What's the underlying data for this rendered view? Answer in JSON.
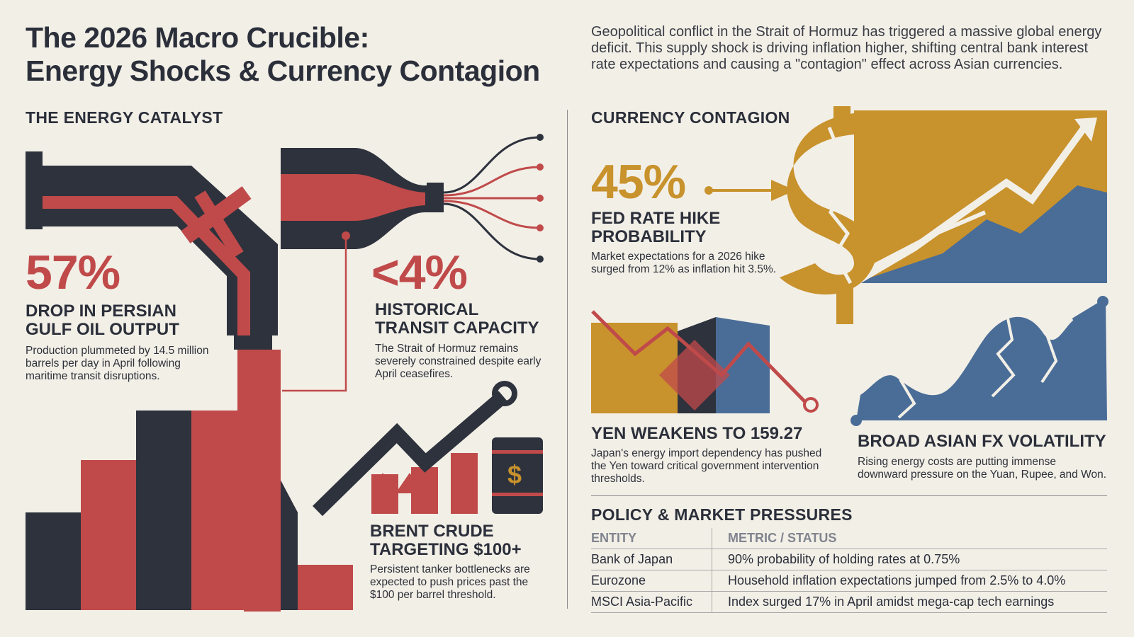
{
  "header": {
    "title_line1": "The 2026 Macro Crucible:",
    "title_line2": "Energy Shocks & Currency Contagion",
    "intro": "Geopolitical conflict in the Strait of Hormuz has triggered a massive global energy deficit. This supply shock is driving inflation higher, shifting central bank interest rate expectations and causing a \"contagion\" effect across Asian currencies."
  },
  "colors": {
    "navy": "#2d323d",
    "red": "#c04a4a",
    "gold": "#c8922c",
    "blue": "#4a6d97",
    "background": "#f2efe7"
  },
  "energy": {
    "heading": "THE ENERGY CATALYST",
    "drop": {
      "value": "57%",
      "label": "DROP IN PERSIAN GULF OIL OUTPUT",
      "desc": "Production plummeted by 14.5 million barrels per day in April following maritime transit disruptions."
    },
    "transit": {
      "value": "<4%",
      "label": "HISTORICAL TRANSIT CAPACITY",
      "desc": "The Strait of Hormuz remains severely constrained despite early April ceasefires."
    },
    "brent": {
      "label": "BRENT CRUDE TARGETING $100+",
      "desc": "Persistent tanker bottlenecks are expected to push prices past the $100 per barrel threshold.",
      "barrel_symbol": "$"
    }
  },
  "currency": {
    "heading": "CURRENCY CONTAGION",
    "fed": {
      "value": "45%",
      "label": "FED RATE HIKE PROBABILITY",
      "desc": "Market expectations for a 2026 hike surged from 12% as inflation hit 3.5%."
    },
    "yen": {
      "label": "YEN WEAKENS TO 159.27",
      "desc": "Japan's energy import dependency has pushed the Yen toward critical government intervention thresholds."
    },
    "asian": {
      "label": "BROAD ASIAN FX VOLATILITY",
      "desc": "Rising energy costs are putting immense downward pressure on the Yuan, Rupee, and Won."
    }
  },
  "policy": {
    "heading": "POLICY & MARKET PRESSURES",
    "columns": [
      "ENTITY",
      "METRIC / STATUS"
    ],
    "rows": [
      [
        "Bank of Japan",
        "90% probability of holding rates at 0.75%"
      ],
      [
        "Eurozone",
        "Household inflation expectations jumped from 2.5% to 4.0%"
      ],
      [
        "MSCI Asia-Pacific",
        "Index surged 17% in April amidst mega-cap tech earnings"
      ]
    ]
  }
}
